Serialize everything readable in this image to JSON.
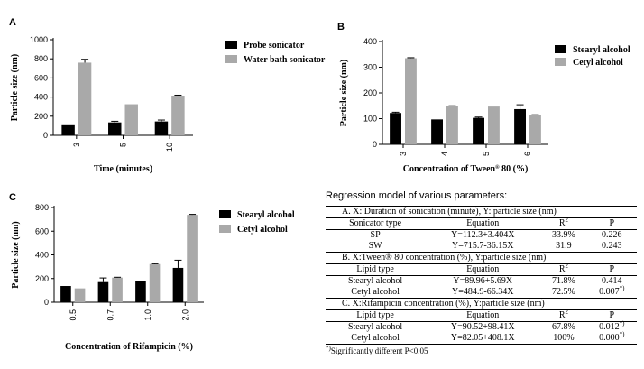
{
  "chart_data": [
    {
      "type": "bar",
      "panel_label": "A",
      "categories": [
        "3",
        "5",
        "10"
      ],
      "series": [
        {
          "name": "Probe sonicator",
          "color": "#000000",
          "values": [
            115,
            135,
            145
          ],
          "errors": [
            0,
            12,
            15
          ]
        },
        {
          "name": "Water bath sonicator",
          "color": "#a9a9a9",
          "values": [
            760,
            325,
            415
          ],
          "errors": [
            35,
            0,
            5
          ]
        }
      ],
      "xlabel": "Time (minutes)",
      "ylabel": "Particle size (nm)",
      "ylim": [
        0,
        1000
      ],
      "yticks": [
        0,
        200,
        400,
        600,
        800,
        1000
      ],
      "legend": "right"
    },
    {
      "type": "bar",
      "panel_label": "B",
      "categories": [
        "3",
        "4",
        "5",
        "6"
      ],
      "series": [
        {
          "name": "Stearyl alcohol",
          "color": "#000000",
          "values": [
            122,
            97,
            103,
            137
          ],
          "errors": [
            3,
            0,
            3,
            17
          ]
        },
        {
          "name": "Cetyl alcohol",
          "color": "#a9a9a9",
          "values": [
            335,
            148,
            147,
            113
          ],
          "errors": [
            2,
            2,
            0,
            2
          ]
        }
      ],
      "xlabel_prefix": "Concentration of Tween",
      "xlabel_sup": "®",
      "xlabel_suffix": " 80 (%)",
      "ylabel": "Particle size (nm)",
      "ylim": [
        0,
        400
      ],
      "yticks": [
        0,
        100,
        200,
        300,
        400
      ],
      "legend": "right"
    },
    {
      "type": "bar",
      "panel_label": "C",
      "categories": [
        "0.5",
        "0.7",
        "1.0",
        "2.0"
      ],
      "series": [
        {
          "name": "Stearyl alcohol",
          "color": "#000000",
          "values": [
            137,
            170,
            180,
            290
          ],
          "errors": [
            0,
            35,
            0,
            65
          ]
        },
        {
          "name": "Cetyl alcohol",
          "color": "#a9a9a9",
          "values": [
            117,
            208,
            322,
            738
          ],
          "errors": [
            0,
            3,
            3,
            4
          ]
        }
      ],
      "xlabel": "Concentration of Rifampicin (%)",
      "ylabel": "Particle size (nm)",
      "ylim": [
        0,
        800
      ],
      "yticks": [
        0,
        200,
        400,
        600,
        800
      ],
      "legend": "right"
    }
  ],
  "regression": {
    "title": "Regression model of various parameters:",
    "sections": [
      {
        "heading": "A.  X: Duration of sonication (minute), Y: particle size (nm)",
        "columns": [
          "Sonicator type",
          "Equation",
          "R",
          "P"
        ],
        "rows": [
          {
            "type": "SP",
            "eq": "Y=112.3+3.404X",
            "r2": "33.9%",
            "p": "0.226",
            "sig": ""
          },
          {
            "type": "SW",
            "eq": "Y=715.7-36.15X",
            "r2": "31.9",
            "p": "0.243",
            "sig": ""
          }
        ]
      },
      {
        "heading": "B.  X:Tween® 80 concentration (%), Y:particle size (nm)",
        "columns": [
          "Lipid type",
          "Equation",
          "R",
          "P"
        ],
        "rows": [
          {
            "type": "Stearyl alcohol",
            "eq": "Y=89.96+5.69X",
            "r2": "71.8%",
            "p": "0.414",
            "sig": ""
          },
          {
            "type": "Cetyl alcohol",
            "eq": "Y=484.9-66.34X",
            "r2": "72.5%",
            "p": "0.007",
            "sig": "*)"
          }
        ]
      },
      {
        "heading": "C.  X:Rifampicin concentration (%), Y:particle size (nm)",
        "columns": [
          "Lipid type",
          "Equation",
          "R",
          "P"
        ],
        "rows": [
          {
            "type": "Stearyl alcohol",
            "eq": "Y=90.52+98.41X",
            "r2": "67.8%",
            "p": "0.012",
            "sig": "*)"
          },
          {
            "type": "Cetyl alcohol",
            "eq": "Y=82.05+408.1X",
            "r2": "100%",
            "p": "0.000",
            "sig": "*)"
          }
        ]
      }
    ],
    "r_superscript": "2",
    "footnote_mark": "*)",
    "footnote_text": "Significantly different P<0.05"
  }
}
